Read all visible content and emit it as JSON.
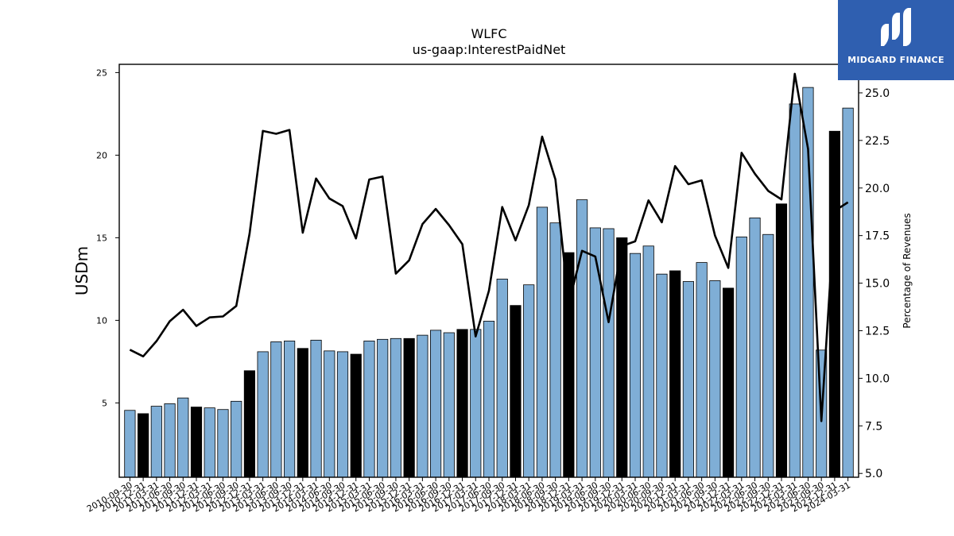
{
  "chart_data": {
    "type": "bar",
    "title": "WLFC",
    "subtitle": "us-gaap:InterestPaidNet",
    "ylabel": "USDm",
    "y2label": "Percentage of Revenues",
    "ylim": [
      0.5,
      25.5
    ],
    "y2lim": [
      4.8,
      26.5
    ],
    "yticks": [
      5,
      10,
      15,
      20,
      25
    ],
    "y2ticks": [
      5.0,
      7.5,
      10.0,
      12.5,
      15.0,
      17.5,
      20.0,
      22.5,
      25.0
    ],
    "categories": [
      "2010-09-30",
      "2010-12-31",
      "2011-03-31",
      "2011-06-30",
      "2011-09-30",
      "2011-12-31",
      "2012-03-31",
      "2012-06-30",
      "2012-09-30",
      "2012-12-31",
      "2013-03-31",
      "2013-06-30",
      "2013-09-30",
      "2013-12-31",
      "2014-03-31",
      "2014-06-30",
      "2014-09-30",
      "2014-12-31",
      "2015-03-31",
      "2015-06-30",
      "2015-09-30",
      "2015-12-31",
      "2016-03-31",
      "2016-06-30",
      "2016-09-30",
      "2016-12-31",
      "2017-03-31",
      "2017-06-30",
      "2017-09-30",
      "2017-12-31",
      "2018-03-31",
      "2018-06-30",
      "2018-09-30",
      "2018-12-31",
      "2019-03-31",
      "2019-06-30",
      "2019-09-30",
      "2019-12-31",
      "2020-03-31",
      "2020-06-30",
      "2020-09-30",
      "2020-12-31",
      "2021-03-31",
      "2021-06-30",
      "2021-09-30",
      "2021-12-31",
      "2022-03-31",
      "2022-06-30",
      "2022-09-30",
      "2022-12-31",
      "2023-03-31",
      "2023-06-30",
      "2023-09-30",
      "2023-12-31",
      "2024-03-31"
    ],
    "series": [
      {
        "name": "USDm",
        "type": "bar",
        "values": [
          4.55,
          4.35,
          4.8,
          4.95,
          5.3,
          4.75,
          4.7,
          4.6,
          5.1,
          6.95,
          8.1,
          8.7,
          8.75,
          8.3,
          8.8,
          8.15,
          8.1,
          7.95,
          8.75,
          8.85,
          8.9,
          8.9,
          9.1,
          9.4,
          9.25,
          9.45,
          9.45,
          9.95,
          12.5,
          10.9,
          12.15,
          16.85,
          15.9,
          14.1,
          17.3,
          15.6,
          15.55,
          15.0,
          14.05,
          14.5,
          12.8,
          13.0,
          12.35,
          13.5,
          12.4,
          11.95,
          15.05,
          16.2,
          15.2,
          17.05,
          23.1,
          24.1,
          8.2,
          21.45,
          22.85
        ],
        "highlight": [
          false,
          true,
          false,
          false,
          false,
          true,
          false,
          false,
          false,
          true,
          false,
          false,
          false,
          true,
          false,
          false,
          false,
          true,
          false,
          false,
          false,
          true,
          false,
          false,
          false,
          true,
          false,
          false,
          false,
          true,
          false,
          false,
          false,
          true,
          false,
          false,
          false,
          true,
          false,
          false,
          false,
          true,
          false,
          false,
          false,
          true,
          false,
          false,
          false,
          true,
          false,
          false,
          false,
          true,
          false
        ]
      },
      {
        "name": "Percentage of Revenues",
        "type": "line",
        "axis": "right",
        "values": [
          11.5,
          11.15,
          11.95,
          13.0,
          13.6,
          12.75,
          13.2,
          13.25,
          13.8,
          17.6,
          23.0,
          22.85,
          23.05,
          17.65,
          20.5,
          19.45,
          19.05,
          17.35,
          20.45,
          20.6,
          15.5,
          16.2,
          18.1,
          18.9,
          18.05,
          17.05,
          12.2,
          14.6,
          19.0,
          17.25,
          19.1,
          22.7,
          20.45,
          13.9,
          16.7,
          16.4,
          12.95,
          16.95,
          17.2,
          19.35,
          18.2,
          21.15,
          20.2,
          20.4,
          17.5,
          15.8,
          21.85,
          20.75,
          19.85,
          19.4,
          26.0,
          22.05,
          7.75,
          18.8,
          19.25
        ]
      }
    ],
    "colors": {
      "bar": "#7faed6",
      "bar_highlight": "#000000",
      "bar_edge": "#000000",
      "line": "#000000"
    },
    "grid": false,
    "legend": "none"
  },
  "logo": {
    "text": "MIDGARD FINANCE",
    "color": "#2f5fb0"
  }
}
